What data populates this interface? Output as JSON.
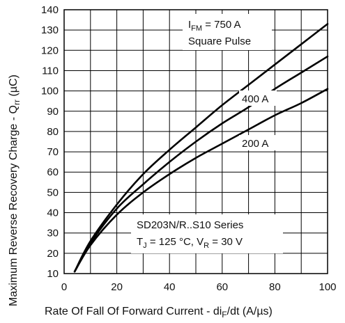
{
  "chart_data": {
    "type": "line",
    "xlabel": "Rate Of Fall Of Forward Current - di",
    "xlabel_sub": "F",
    "xlabel_tail": "/dt (A/µs)",
    "ylabel": "Maximum Reverse Recovery Charge - Q",
    "ylabel_sub": "rr",
    "ylabel_tail": " (µC)",
    "xlim": [
      0,
      100
    ],
    "ylim": [
      10,
      140
    ],
    "x_ticks": [
      0,
      20,
      40,
      60,
      80,
      100
    ],
    "y_ticks": [
      10,
      20,
      30,
      40,
      50,
      60,
      70,
      80,
      90,
      100,
      110,
      120,
      130,
      140
    ],
    "grid": true,
    "series": [
      {
        "name": "750 A",
        "x": [
          4,
          10,
          20,
          30,
          40,
          50,
          60,
          70,
          80,
          90,
          100
        ],
        "y": [
          11,
          26,
          44,
          59,
          71,
          82,
          93,
          103,
          113,
          123,
          133
        ]
      },
      {
        "name": "400 A",
        "x": [
          4,
          10,
          20,
          30,
          40,
          50,
          60,
          70,
          80,
          90,
          100
        ],
        "y": [
          11,
          25,
          42,
          54,
          65,
          75,
          84,
          92,
          101,
          109,
          117
        ]
      },
      {
        "name": "200 A",
        "x": [
          4,
          10,
          20,
          30,
          40,
          50,
          60,
          70,
          80,
          90,
          100
        ],
        "y": [
          11,
          24,
          39,
          50,
          59,
          67,
          74,
          81,
          88,
          94,
          101
        ]
      }
    ],
    "annotations": {
      "ifm_main": "I",
      "ifm_sub": "FM",
      "ifm_tail": " = 750 A",
      "pulse": "Square Pulse",
      "label_400": "400 A",
      "label_200": "200 A",
      "series_name": "SD203N/R..S10 Series",
      "cond_tj": "T",
      "cond_tj_sub": "J",
      "cond_mid": " = 125 °C, V",
      "cond_vr_sub": "R",
      "cond_tail": " = 30 V"
    }
  }
}
